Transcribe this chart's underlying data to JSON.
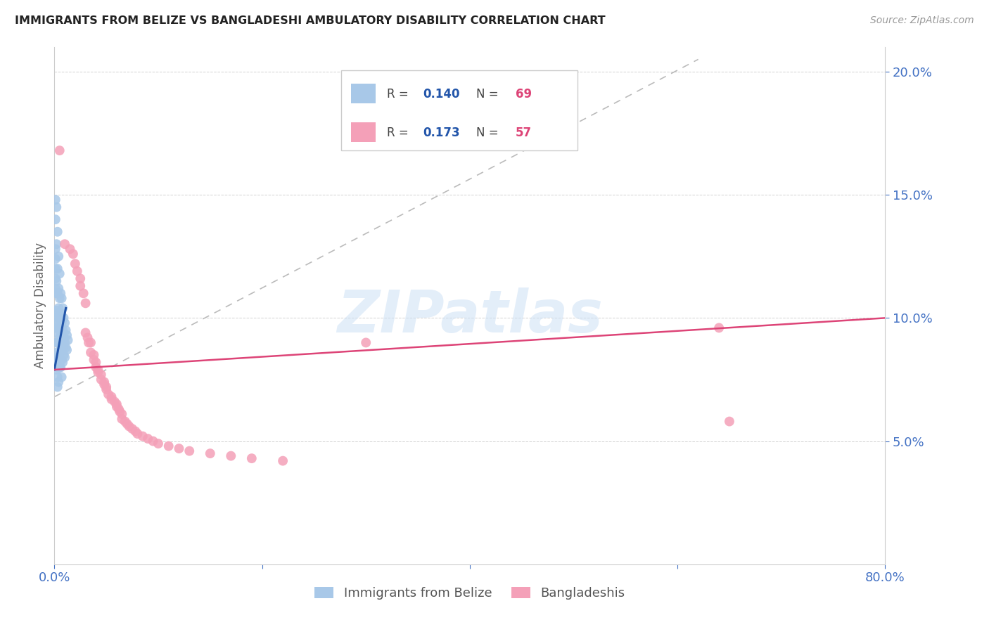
{
  "title": "IMMIGRANTS FROM BELIZE VS BANGLADESHI AMBULATORY DISABILITY CORRELATION CHART",
  "source": "Source: ZipAtlas.com",
  "ylabel": "Ambulatory Disability",
  "series1_label": "Immigrants from Belize",
  "series2_label": "Bangladeshis",
  "series1_color": "#a8c8e8",
  "series2_color": "#f4a0b8",
  "series1_line_color": "#2255aa",
  "series2_line_color": "#dd4477",
  "series1_R": 0.14,
  "series1_N": 69,
  "series2_R": 0.173,
  "series2_N": 57,
  "legend_R_color": "#2255aa",
  "legend_N_color": "#dd4477",
  "xlim": [
    0.0,
    0.8
  ],
  "ylim": [
    0.0,
    0.21
  ],
  "yticks": [
    0.05,
    0.1,
    0.15,
    0.2
  ],
  "ytick_labels": [
    "5.0%",
    "10.0%",
    "15.0%",
    "20.0%"
  ],
  "xticks": [
    0.0,
    0.2,
    0.4,
    0.6,
    0.8
  ],
  "xtick_labels": [
    "0.0%",
    "",
    "",
    "",
    "80.0%"
  ],
  "title_color": "#222222",
  "axis_label_color": "#4472c4",
  "background_color": "#ffffff",
  "watermark": "ZIPatlas",
  "blue_line_x": [
    0.0,
    0.011
  ],
  "blue_line_y": [
    0.079,
    0.104
  ],
  "pink_line_x": [
    0.0,
    0.8
  ],
  "pink_line_y": [
    0.079,
    0.1
  ],
  "dashed_line_x": [
    0.0,
    0.62
  ],
  "dashed_line_y": [
    0.068,
    0.205
  ],
  "s1_x": [
    0.001,
    0.001,
    0.001,
    0.001,
    0.001,
    0.001,
    0.001,
    0.001,
    0.001,
    0.002,
    0.002,
    0.002,
    0.002,
    0.002,
    0.002,
    0.002,
    0.002,
    0.002,
    0.002,
    0.002,
    0.003,
    0.003,
    0.003,
    0.003,
    0.003,
    0.003,
    0.003,
    0.003,
    0.003,
    0.003,
    0.004,
    0.004,
    0.004,
    0.004,
    0.004,
    0.004,
    0.004,
    0.004,
    0.005,
    0.005,
    0.005,
    0.005,
    0.005,
    0.005,
    0.006,
    0.006,
    0.006,
    0.006,
    0.006,
    0.007,
    0.007,
    0.007,
    0.007,
    0.007,
    0.008,
    0.008,
    0.008,
    0.008,
    0.009,
    0.009,
    0.009,
    0.01,
    0.01,
    0.01,
    0.011,
    0.011,
    0.012,
    0.012,
    0.013
  ],
  "s1_y": [
    0.148,
    0.14,
    0.128,
    0.124,
    0.12,
    0.116,
    0.112,
    0.1,
    0.096,
    0.145,
    0.13,
    0.115,
    0.11,
    0.103,
    0.098,
    0.094,
    0.09,
    0.086,
    0.082,
    0.079,
    0.135,
    0.12,
    0.11,
    0.102,
    0.096,
    0.09,
    0.084,
    0.08,
    0.076,
    0.072,
    0.125,
    0.112,
    0.104,
    0.096,
    0.09,
    0.084,
    0.08,
    0.074,
    0.118,
    0.108,
    0.1,
    0.092,
    0.086,
    0.08,
    0.11,
    0.102,
    0.094,
    0.087,
    0.08,
    0.108,
    0.098,
    0.09,
    0.083,
    0.076,
    0.104,
    0.095,
    0.088,
    0.082,
    0.1,
    0.092,
    0.085,
    0.098,
    0.09,
    0.084,
    0.095,
    0.088,
    0.093,
    0.087,
    0.091
  ],
  "s2_x": [
    0.005,
    0.01,
    0.015,
    0.018,
    0.02,
    0.022,
    0.025,
    0.025,
    0.028,
    0.03,
    0.03,
    0.032,
    0.033,
    0.035,
    0.035,
    0.038,
    0.038,
    0.04,
    0.04,
    0.042,
    0.042,
    0.045,
    0.045,
    0.048,
    0.048,
    0.05,
    0.05,
    0.052,
    0.055,
    0.055,
    0.058,
    0.06,
    0.06,
    0.062,
    0.063,
    0.065,
    0.065,
    0.068,
    0.07,
    0.072,
    0.075,
    0.078,
    0.08,
    0.085,
    0.09,
    0.095,
    0.1,
    0.11,
    0.12,
    0.13,
    0.15,
    0.17,
    0.19,
    0.22,
    0.3,
    0.64,
    0.65
  ],
  "s2_y": [
    0.168,
    0.13,
    0.128,
    0.126,
    0.122,
    0.119,
    0.116,
    0.113,
    0.11,
    0.106,
    0.094,
    0.092,
    0.09,
    0.09,
    0.086,
    0.085,
    0.083,
    0.082,
    0.08,
    0.079,
    0.078,
    0.077,
    0.075,
    0.074,
    0.073,
    0.072,
    0.071,
    0.069,
    0.068,
    0.067,
    0.066,
    0.065,
    0.064,
    0.063,
    0.062,
    0.061,
    0.059,
    0.058,
    0.057,
    0.056,
    0.055,
    0.054,
    0.053,
    0.052,
    0.051,
    0.05,
    0.049,
    0.048,
    0.047,
    0.046,
    0.045,
    0.044,
    0.043,
    0.042,
    0.09,
    0.096,
    0.058
  ]
}
